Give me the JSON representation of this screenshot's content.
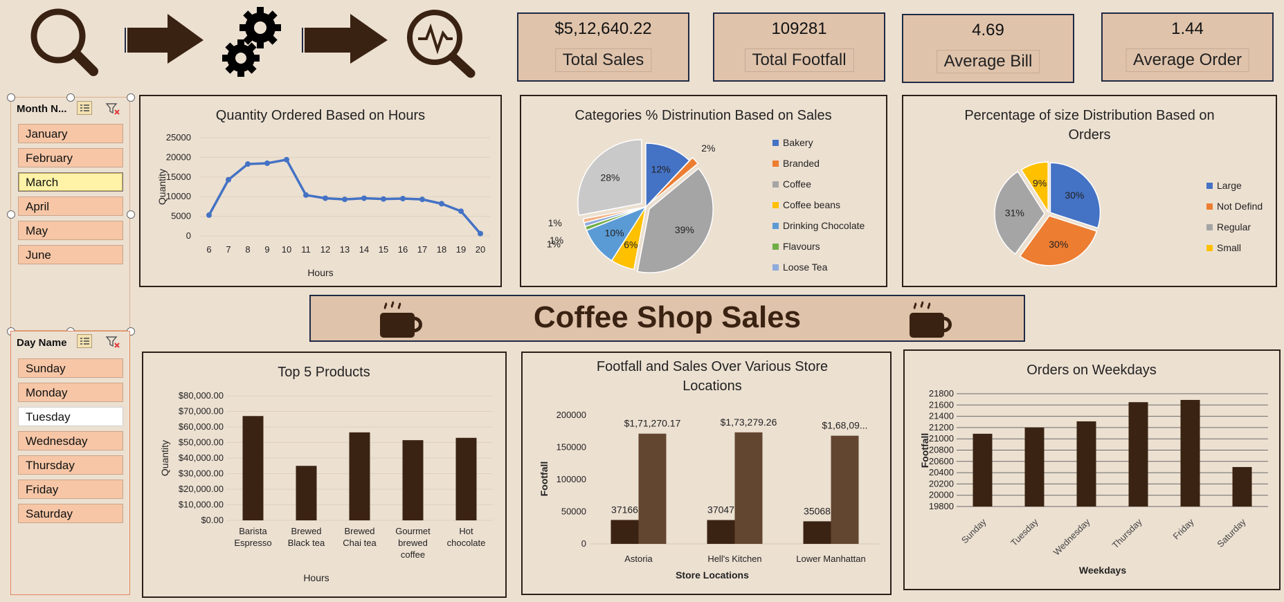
{
  "kpis": [
    {
      "value": "$5,12,640.22",
      "label": "Total Sales"
    },
    {
      "value": "109281",
      "label": "Total Footfall"
    },
    {
      "value": "4.69",
      "label": "Average Bill"
    },
    {
      "value": "1.44",
      "label": "Average Order"
    }
  ],
  "banner": {
    "title": "Coffee Shop Sales"
  },
  "slicers": {
    "month": {
      "header": "Month N...",
      "items": [
        "January",
        "February",
        "March",
        "April",
        "May",
        "June"
      ],
      "selected": "March"
    },
    "day": {
      "header": "Day Name",
      "items": [
        "Sunday",
        "Monday",
        "Tuesday",
        "Wednesday",
        "Thursday",
        "Friday",
        "Saturday"
      ],
      "deselected": "Tuesday"
    }
  },
  "colors": {
    "dark_brown": "#3b2313",
    "mid_brown": "#634630",
    "kpi_bg": "#dfc3ab",
    "line_blue": "#4472c4"
  },
  "icons": [
    "search-icon",
    "arrow-right-icon",
    "gears-icon",
    "arrow-right-icon",
    "analytics-search-icon",
    "coffee-cup-icon"
  ],
  "chart_data": [
    {
      "id": "hours",
      "type": "line",
      "title": "Quantity Ordered Based on Hours",
      "xlabel": "Hours",
      "ylabel": "Quantity",
      "x": [
        6,
        7,
        8,
        9,
        10,
        11,
        12,
        13,
        14,
        15,
        16,
        17,
        18,
        19,
        20
      ],
      "values": [
        5300,
        14300,
        18300,
        18500,
        19400,
        10400,
        9600,
        9300,
        9600,
        9400,
        9500,
        9300,
        8200,
        6300,
        600
      ],
      "ylim": [
        0,
        25000
      ],
      "yticks": [
        "0",
        "5000",
        "10000",
        "15000",
        "20000",
        "25000"
      ]
    },
    {
      "id": "categories",
      "type": "pie",
      "title": "Categories % Distrinution Based on Sales",
      "slices": [
        {
          "name": "Bakery",
          "value": 12,
          "label": "12%",
          "color": "#4472c4"
        },
        {
          "name": "Branded",
          "value": 2,
          "label": "2%",
          "color": "#ed7d31"
        },
        {
          "name": "Coffee",
          "value": 39,
          "label": "39%",
          "color": "#a5a5a5"
        },
        {
          "name": "Coffee beans",
          "value": 6,
          "label": "6%",
          "color": "#ffc000"
        },
        {
          "name": "Drinking Chocolate",
          "value": 10,
          "label": "10%",
          "color": "#5b9bd5"
        },
        {
          "name": "Flavours",
          "value": 1,
          "label": "1%",
          "color": "#70ad47"
        },
        {
          "name": "Loose Tea",
          "value": 1,
          "label": "1%",
          "color": "#8faadc"
        },
        {
          "name": "",
          "value": 1,
          "label": "1%",
          "color": "#f4b183"
        },
        {
          "name": "",
          "value": 28,
          "label": "28%",
          "color": "#c9c9c9"
        }
      ],
      "legend": [
        "Bakery",
        "Branded",
        "Coffee",
        "Coffee beans",
        "Drinking Chocolate",
        "Flavours",
        "Loose Tea"
      ],
      "legend_colors": [
        "#4472c4",
        "#ed7d31",
        "#a5a5a5",
        "#ffc000",
        "#5b9bd5",
        "#70ad47",
        "#8faadc"
      ]
    },
    {
      "id": "sizes",
      "type": "pie",
      "title": [
        "Percentage of size Distribution Based on",
        "Orders"
      ],
      "slices": [
        {
          "name": "Large",
          "value": 30,
          "label": "30%",
          "color": "#4472c4"
        },
        {
          "name": "Not Defind",
          "value": 30,
          "label": "30%",
          "color": "#ed7d31"
        },
        {
          "name": "Regular",
          "value": 31,
          "label": "31%",
          "color": "#a5a5a5"
        },
        {
          "name": "Small",
          "value": 9,
          "label": "9%",
          "color": "#ffc000"
        }
      ],
      "legend_position": "right"
    },
    {
      "id": "top5",
      "type": "bar",
      "title": "Top 5 Products",
      "xlabel": "Hours",
      "ylabel": "Quantity",
      "categories": [
        [
          "Barista",
          "Espresso"
        ],
        [
          "Brewed",
          "Black tea"
        ],
        [
          "Brewed",
          "Chai tea"
        ],
        [
          "Gourmet",
          "brewed",
          "coffee"
        ],
        [
          "Hot",
          "chocolate"
        ]
      ],
      "values": [
        67000,
        35000,
        56500,
        51500,
        53000
      ],
      "ylim": [
        0,
        80000
      ],
      "yticks": [
        "$0.00",
        "$10,000.00",
        "$20,000.00",
        "$30,000.00",
        "$40,000.00",
        "$50,000.00",
        "$60,000.00",
        "$70,000.00",
        "$80,000.00"
      ]
    },
    {
      "id": "stores",
      "type": "bar",
      "title": [
        "Footfall and Sales Over Various Store",
        "Locations"
      ],
      "xlabel": "Store Locations",
      "ylabel": "Footfall",
      "categories": [
        "Astoria",
        "Hell's Kitchen",
        "Lower Manhattan"
      ],
      "series": [
        {
          "values": [
            37166,
            37047,
            35068
          ],
          "labels": [
            "37166",
            "37047",
            "35068"
          ]
        },
        {
          "values": [
            171270.17,
            173279.26,
            168090
          ],
          "labels": [
            "$1,71,270.17",
            "$1,73,279.26",
            "$1,68,09..."
          ]
        }
      ],
      "ylim": [
        0,
        200000
      ],
      "yticks": [
        "0",
        "50000",
        "100000",
        "150000",
        "200000"
      ]
    },
    {
      "id": "weekdays",
      "type": "bar",
      "title": "Orders on Weekdays",
      "xlabel": "Weekdays",
      "ylabel": "Footfall",
      "categories": [
        "Sunday",
        "Tuesday",
        "Wednesday",
        "Thursday",
        "Friday",
        "Saturday"
      ],
      "values": [
        21090,
        21200,
        21310,
        21650,
        21690,
        20500
      ],
      "ylim": [
        19800,
        21800
      ],
      "yticks": [
        "19800",
        "20000",
        "20200",
        "20400",
        "20600",
        "20800",
        "21000",
        "21200",
        "21400",
        "21600",
        "21800"
      ]
    }
  ]
}
